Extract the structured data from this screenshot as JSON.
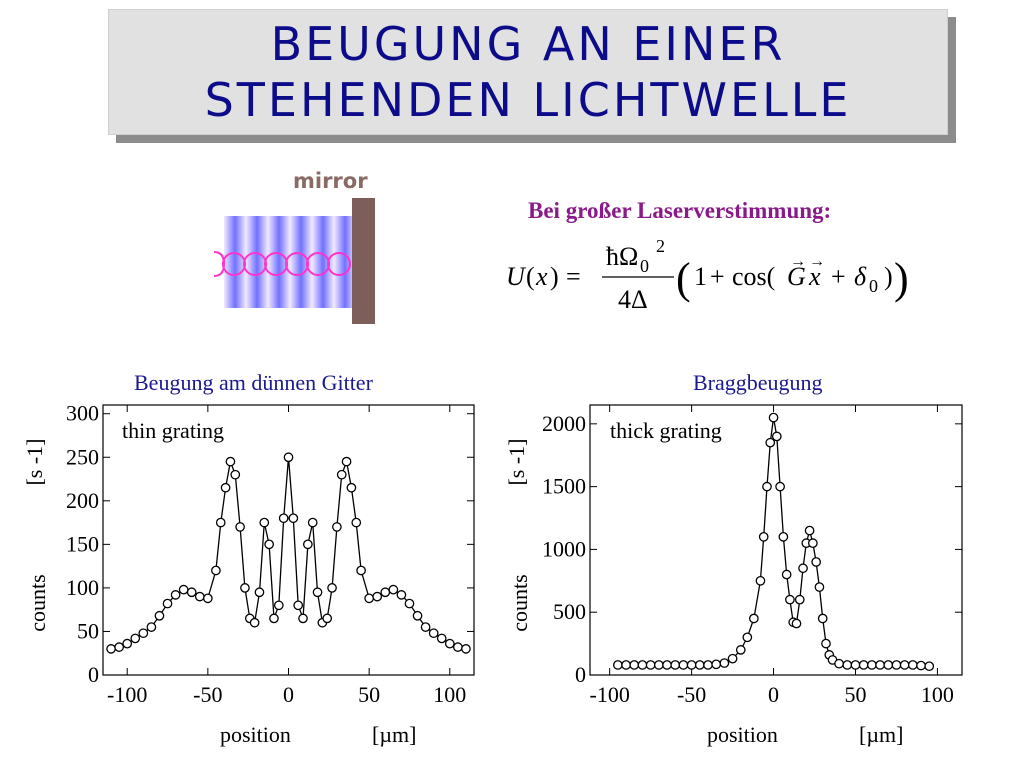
{
  "title": {
    "line1": "BEUGUNG AN EINER",
    "line2": "STEHENDEN LICHTWELLE"
  },
  "diagram": {
    "mirror_label": "mirror"
  },
  "equation": {
    "heading": "Bei großer Laserverstimmung:",
    "lhs": "U(x) =",
    "numerator": "ħΩ₀²",
    "denominator": "4Δ",
    "rhs": "(1 + cos(G⃗x⃗ + δ₀))"
  },
  "colors": {
    "title_text": "#0c0c8a",
    "heading_text": "#1a1a90",
    "equation_heading": "#8a1a8a",
    "mirror": "#7d5e5a",
    "standing_wave": "#ff33cc",
    "light_dark": "#7070ff"
  },
  "chart_data": [
    {
      "type": "scatter",
      "title": "Beugung am dünnen Gitter",
      "annotation": "thin grating",
      "xlabel": "position",
      "xunit": "[µm]",
      "ylabel": "counts",
      "yunit": "[s -1]",
      "xlim": [
        -115,
        115
      ],
      "ylim": [
        0,
        310
      ],
      "xticks": [
        -100,
        -50,
        0,
        50,
        100
      ],
      "yticks": [
        0,
        50,
        100,
        150,
        200,
        250,
        300
      ],
      "fit_line": true,
      "x": [
        -110,
        -105,
        -100,
        -95,
        -90,
        -85,
        -80,
        -75,
        -70,
        -65,
        -60,
        -55,
        -50,
        -45,
        -42,
        -39,
        -36,
        -33,
        -30,
        -27,
        -24,
        -21,
        -18,
        -15,
        -12,
        -9,
        -6,
        -3,
        0,
        3,
        6,
        9,
        12,
        15,
        18,
        21,
        24,
        27,
        30,
        33,
        36,
        39,
        42,
        45,
        50,
        55,
        60,
        65,
        70,
        75,
        80,
        85,
        90,
        95,
        100,
        105,
        110
      ],
      "y": [
        30,
        32,
        36,
        42,
        48,
        55,
        68,
        82,
        92,
        98,
        95,
        90,
        88,
        120,
        175,
        215,
        245,
        230,
        170,
        100,
        65,
        60,
        95,
        175,
        150,
        65,
        80,
        180,
        250,
        180,
        80,
        65,
        150,
        175,
        95,
        60,
        65,
        100,
        170,
        230,
        245,
        215,
        175,
        120,
        88,
        90,
        95,
        98,
        92,
        82,
        68,
        55,
        48,
        42,
        36,
        32,
        30
      ]
    },
    {
      "type": "scatter",
      "title": "Braggbeugung",
      "annotation": "thick grating",
      "xlabel": "position",
      "xunit": "[µm]",
      "ylabel": "counts",
      "yunit": "[s -1]",
      "xlim": [
        -112,
        115
      ],
      "ylim": [
        0,
        2150
      ],
      "xticks": [
        -100,
        -50,
        0,
        50,
        100
      ],
      "yticks": [
        0,
        500,
        1000,
        1500,
        2000
      ],
      "fit_line": true,
      "x": [
        -95,
        -90,
        -85,
        -80,
        -75,
        -70,
        -65,
        -60,
        -55,
        -50,
        -45,
        -40,
        -35,
        -30,
        -25,
        -20,
        -16,
        -12,
        -8,
        -6,
        -4,
        -2,
        0,
        2,
        4,
        6,
        8,
        10,
        12,
        14,
        16,
        18,
        20,
        22,
        24,
        26,
        28,
        30,
        32,
        34,
        36,
        40,
        45,
        50,
        55,
        60,
        65,
        70,
        75,
        80,
        85,
        90,
        95
      ],
      "y": [
        80,
        80,
        80,
        80,
        80,
        80,
        80,
        80,
        80,
        80,
        80,
        80,
        85,
        95,
        130,
        200,
        300,
        450,
        750,
        1100,
        1500,
        1850,
        2050,
        1900,
        1500,
        1100,
        800,
        600,
        420,
        410,
        600,
        850,
        1050,
        1150,
        1050,
        900,
        700,
        450,
        250,
        160,
        120,
        90,
        80,
        80,
        80,
        80,
        80,
        80,
        80,
        80,
        80,
        75,
        70
      ]
    }
  ]
}
